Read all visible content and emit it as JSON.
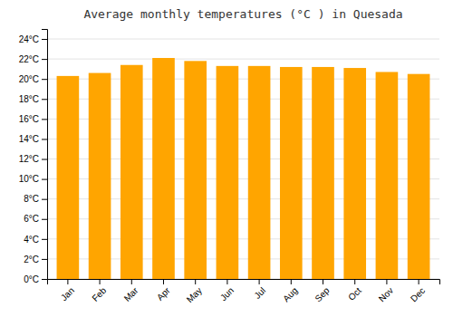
{
  "chart_data": {
    "type": "bar",
    "title": "Average monthly temperatures (°C ) in Quesada",
    "categories": [
      "Jan",
      "Feb",
      "Mar",
      "Apr",
      "May",
      "Jun",
      "Jul",
      "Aug",
      "Sep",
      "Oct",
      "Nov",
      "Dec"
    ],
    "values": [
      20.3,
      20.6,
      21.4,
      22.1,
      21.8,
      21.3,
      21.3,
      21.2,
      21.2,
      21.1,
      20.7,
      20.5
    ],
    "color": "#FFA500",
    "ylim": [
      0,
      25
    ],
    "yticks": [
      {
        "value": 0,
        "label": "0°C"
      },
      {
        "value": 2,
        "label": "2°C"
      },
      {
        "value": 4,
        "label": "4°C"
      },
      {
        "value": 6,
        "label": "6°C"
      },
      {
        "value": 8,
        "label": "8°C"
      },
      {
        "value": 10,
        "label": "10°C"
      },
      {
        "value": 12,
        "label": "12°C"
      },
      {
        "value": 14,
        "label": "14°C"
      },
      {
        "value": 16,
        "label": "16°C"
      },
      {
        "value": 18,
        "label": "18°C"
      },
      {
        "value": 20,
        "label": "20°C"
      },
      {
        "value": 22,
        "label": "22°C"
      },
      {
        "value": 24,
        "label": "24°C"
      }
    ],
    "grid": true
  }
}
